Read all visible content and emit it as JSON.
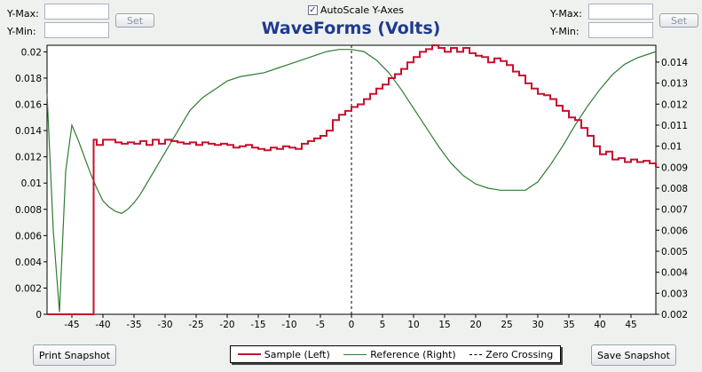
{
  "left_axis_controls": {
    "ymax_label": "Y-Max:",
    "ymin_label": "Y-Min:",
    "ymax_value": "",
    "ymin_value": "",
    "set_label": "Set"
  },
  "right_axis_controls": {
    "ymax_label": "Y-Max:",
    "ymin_label": "Y-Min:",
    "ymax_value": "",
    "ymin_value": "",
    "set_label": "Set"
  },
  "autoscale": {
    "label": "AutoScale Y-Axes",
    "checked": true
  },
  "buttons": {
    "print": "Print Snapshot",
    "save": "Save Snapshot"
  },
  "colors": {
    "sample": "#c8102e",
    "reference": "#2e7d32",
    "zero": "#000000",
    "title": "#1f3a8f"
  },
  "chart_data": {
    "type": "line",
    "title": "WaveForms (Volts)",
    "xlim": [
      -49,
      49
    ],
    "x_ticks": [
      -45,
      -40,
      -35,
      -30,
      -25,
      -20,
      -15,
      -10,
      -5,
      0,
      5,
      10,
      15,
      20,
      25,
      30,
      35,
      40,
      45
    ],
    "ylim_left": [
      0,
      0.0205
    ],
    "left_ticks": [
      "0",
      "0.002",
      "0.004",
      "0.006",
      "0.008",
      "0.01",
      "0.012",
      "0.014",
      "0.016",
      "0.018",
      "0.02"
    ],
    "left_tick_values": [
      0,
      0.002,
      0.004,
      0.006,
      0.008,
      0.01,
      0.012,
      0.014,
      0.016,
      0.018,
      0.02
    ],
    "ylim_right": [
      0.002,
      0.0148
    ],
    "right_ticks": [
      "0.002",
      "0.003",
      "0.004",
      "0.005",
      "0.006",
      "0.007",
      "0.008",
      "0.009",
      "0.01",
      "0.011",
      "0.012",
      "0.013",
      "0.014"
    ],
    "right_tick_values": [
      0.002,
      0.003,
      0.004,
      0.005,
      0.006,
      0.007,
      0.008,
      0.009,
      0.01,
      0.011,
      0.012,
      0.013,
      0.014
    ],
    "legend": [
      "Sample (Left)",
      "Reference (Right)",
      "Zero Crossing"
    ],
    "series": [
      {
        "name": "Sample (Left)",
        "axis": "left",
        "x": [
          -49,
          -42,
          -41.5,
          -41,
          -40,
          -39,
          -38,
          -37,
          -36,
          -35,
          -34,
          -33,
          -32,
          -31,
          -30,
          -29,
          -28,
          -27,
          -26,
          -25,
          -24,
          -23,
          -22,
          -21,
          -20,
          -19,
          -18,
          -17,
          -16,
          -15,
          -14,
          -13,
          -12,
          -11,
          -10,
          -9,
          -8,
          -7,
          -6,
          -5,
          -4,
          -3,
          -2,
          -1,
          0,
          1,
          2,
          3,
          4,
          5,
          6,
          7,
          8,
          9,
          10,
          11,
          12,
          13,
          14,
          15,
          16,
          17,
          18,
          19,
          20,
          21,
          22,
          23,
          24,
          25,
          26,
          27,
          28,
          29,
          30,
          31,
          32,
          33,
          34,
          35,
          36,
          37,
          38,
          39,
          40,
          41,
          42,
          43,
          44,
          45,
          46,
          47,
          48,
          49
        ],
        "y": [
          0,
          0,
          0.0133,
          0.0129,
          0.0133,
          0.0133,
          0.0131,
          0.013,
          0.0131,
          0.013,
          0.0132,
          0.0129,
          0.0133,
          0.013,
          0.0133,
          0.0132,
          0.0131,
          0.013,
          0.0131,
          0.0129,
          0.0131,
          0.013,
          0.0129,
          0.013,
          0.0129,
          0.0127,
          0.0128,
          0.0129,
          0.0127,
          0.0126,
          0.0125,
          0.0127,
          0.0126,
          0.0128,
          0.0127,
          0.0126,
          0.013,
          0.0132,
          0.0134,
          0.0136,
          0.014,
          0.0148,
          0.0152,
          0.0155,
          0.0158,
          0.016,
          0.0164,
          0.0168,
          0.0172,
          0.0175,
          0.018,
          0.0183,
          0.0187,
          0.0192,
          0.0196,
          0.02,
          0.0202,
          0.0205,
          0.0203,
          0.02,
          0.0203,
          0.02,
          0.0203,
          0.0199,
          0.0197,
          0.0196,
          0.0192,
          0.0195,
          0.0193,
          0.019,
          0.0185,
          0.0182,
          0.0176,
          0.0172,
          0.0168,
          0.0167,
          0.0164,
          0.0159,
          0.0155,
          0.015,
          0.0148,
          0.0142,
          0.0136,
          0.0128,
          0.0122,
          0.0124,
          0.0118,
          0.0119,
          0.0116,
          0.0118,
          0.0116,
          0.0117,
          0.0115,
          0.0112
        ]
      },
      {
        "name": "Reference (Right)",
        "axis": "right",
        "x": [
          -49,
          -48,
          -47,
          -46,
          -45,
          -44,
          -43,
          -42,
          -41,
          -40,
          -39,
          -38,
          -37,
          -36,
          -35,
          -34,
          -33,
          -32,
          -31,
          -30,
          -29,
          -28,
          -27,
          -26,
          -25,
          -24,
          -23,
          -22,
          -21,
          -20,
          -18,
          -16,
          -14,
          -12,
          -10,
          -8,
          -6,
          -4,
          -2,
          0,
          2,
          4,
          6,
          8,
          10,
          12,
          14,
          16,
          18,
          20,
          22,
          24,
          26,
          28,
          30,
          32,
          34,
          36,
          38,
          40,
          42,
          44,
          46,
          48,
          49
        ],
        "y": [
          0.0125,
          0.006,
          0.0021,
          0.0088,
          0.011,
          0.0103,
          0.0095,
          0.0087,
          0.008,
          0.0074,
          0.0071,
          0.0069,
          0.0068,
          0.007,
          0.0073,
          0.0077,
          0.0082,
          0.0087,
          0.0092,
          0.0097,
          0.0102,
          0.0107,
          0.0112,
          0.0117,
          0.012,
          0.0123,
          0.0125,
          0.0127,
          0.0129,
          0.0131,
          0.0133,
          0.0134,
          0.0135,
          0.0137,
          0.0139,
          0.0141,
          0.0143,
          0.0145,
          0.0146,
          0.0146,
          0.0145,
          0.0141,
          0.0135,
          0.0127,
          0.0118,
          0.0109,
          0.01,
          0.0092,
          0.0086,
          0.0082,
          0.008,
          0.0079,
          0.0079,
          0.0079,
          0.0083,
          0.0091,
          0.01,
          0.011,
          0.0119,
          0.0127,
          0.0134,
          0.0139,
          0.0142,
          0.0144,
          0.0145
        ]
      }
    ],
    "zero_crossing_x": 0
  }
}
